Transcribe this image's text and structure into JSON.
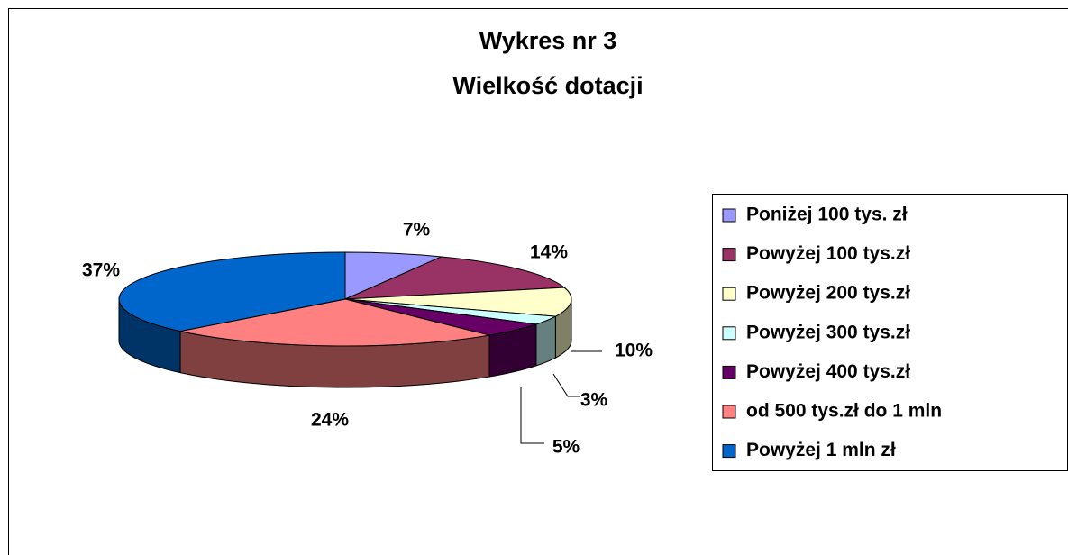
{
  "chart_data": {
    "type": "pie",
    "title": "Wykres nr 3",
    "subtitle": "Wielkość dotacji",
    "categories": [
      "Poniżej 100 tys. zł",
      "Powyżej 100 tys.zł",
      "Powyżej 200 tys.zł",
      "Powyżej 300 tys.zł",
      "Powyżej 400 tys.zł",
      "od 500 tys.zł do 1 mln",
      "Powyżej  1 mln zł"
    ],
    "values": [
      7,
      14,
      10,
      3,
      5,
      24,
      37
    ],
    "value_labels": [
      "7%",
      "14%",
      "10%",
      "3%",
      "5%",
      "24%",
      "37%"
    ],
    "colors": [
      "#9999ff",
      "#993366",
      "#ffffcc",
      "#ccffff",
      "#660066",
      "#ff8080",
      "#0066cc"
    ],
    "legend": "right"
  }
}
